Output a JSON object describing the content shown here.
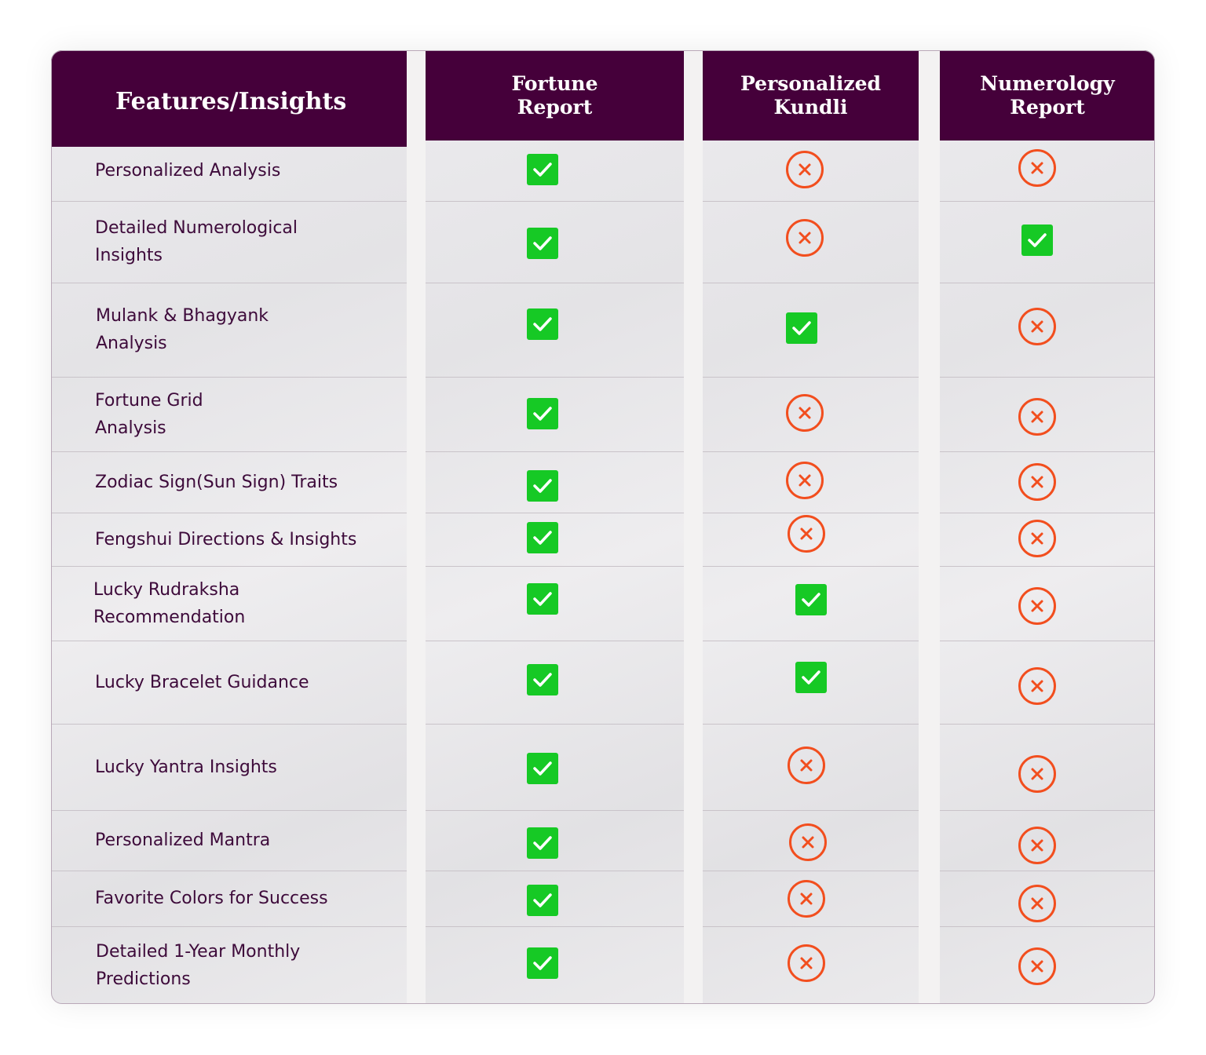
{
  "table": {
    "columns": [
      {
        "id": "features",
        "label": "Features/Insights"
      },
      {
        "id": "fortune",
        "label": "Fortune\nReport"
      },
      {
        "id": "kundli",
        "label": "Personalized\nKundli"
      },
      {
        "id": "numerology",
        "label": "Numerology\nReport"
      }
    ],
    "rows": [
      {
        "feature": "Personalized Analysis",
        "fortune": true,
        "kundli": false,
        "numerology": false
      },
      {
        "feature": "Detailed Numerological\nInsights",
        "fortune": true,
        "kundli": false,
        "numerology": true
      },
      {
        "feature": "Mulank & Bhagyank\nAnalysis",
        "fortune": true,
        "kundli": true,
        "numerology": false
      },
      {
        "feature": "Fortune Grid\nAnalysis",
        "fortune": true,
        "kundli": false,
        "numerology": false
      },
      {
        "feature": "Zodiac Sign(Sun Sign) Traits",
        "fortune": true,
        "kundli": false,
        "numerology": false
      },
      {
        "feature": "Fengshui Directions & Insights",
        "fortune": true,
        "kundli": false,
        "numerology": false
      },
      {
        "feature": "Lucky Rudraksha\nRecommendation",
        "fortune": true,
        "kundli": true,
        "numerology": false
      },
      {
        "feature": "Lucky Bracelet Guidance",
        "fortune": true,
        "kundli": true,
        "numerology": false
      },
      {
        "feature": "Lucky Yantra Insights",
        "fortune": true,
        "kundli": false,
        "numerology": false
      },
      {
        "feature": "Personalized Mantra",
        "fortune": true,
        "kundli": false,
        "numerology": false
      },
      {
        "feature": "Favorite Colors for Success",
        "fortune": true,
        "kundli": false,
        "numerology": false
      },
      {
        "feature": "Detailed 1-Year Monthly\nPredictions",
        "fortune": true,
        "kundli": false,
        "numerology": false
      }
    ],
    "icons": {
      "included": "check-icon",
      "excluded": "cross-icon"
    },
    "colors": {
      "header_bg": "#45003a",
      "check": "#16c925",
      "cross": "#f24e1e",
      "label_text": "#3d0a3a"
    }
  }
}
